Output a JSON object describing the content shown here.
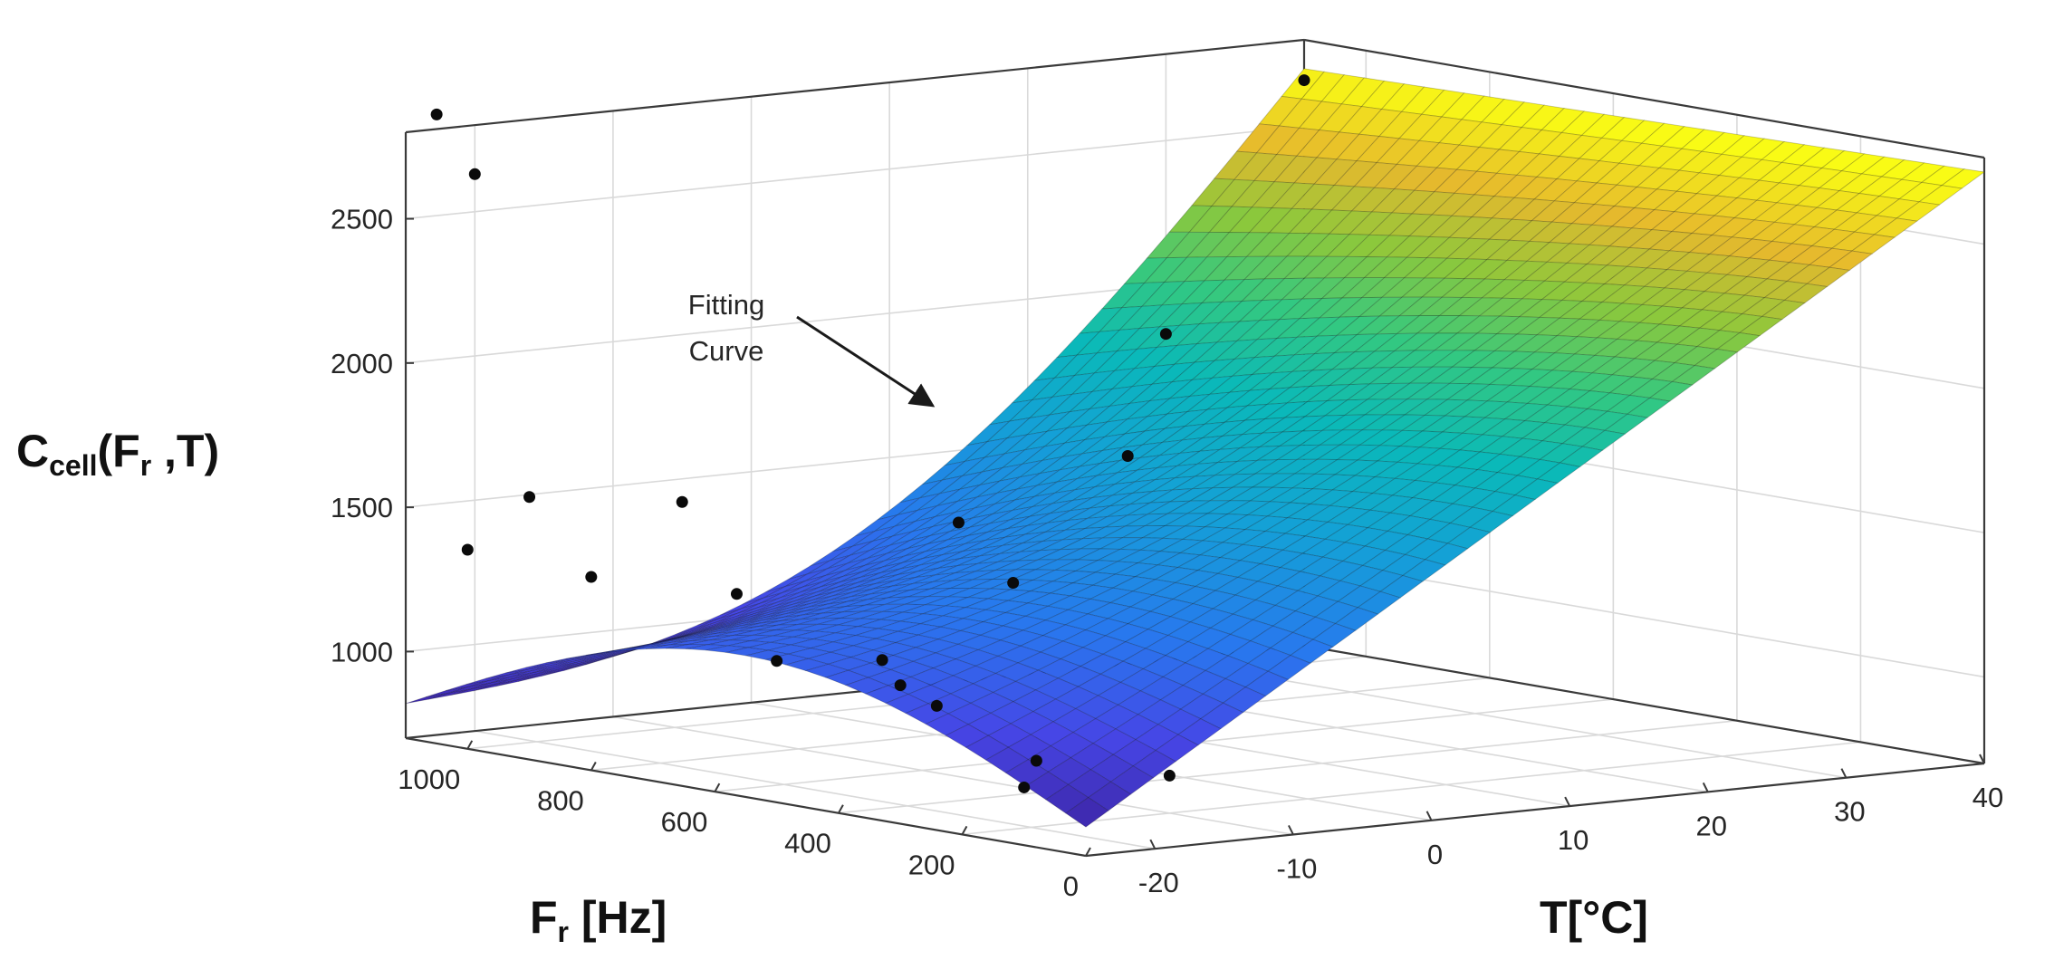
{
  "chart_data": {
    "type": "surface3d",
    "title": "",
    "zlabel": {
      "main": "C",
      "sub": "cell",
      "rest_a": "(F",
      "sub2": "r",
      "rest_b": " ,T)"
    },
    "xlabel": {
      "main": "F",
      "sub": "r",
      "rest": " [Hz]"
    },
    "ylabel": "T[°C]",
    "x_range": [
      0,
      1100
    ],
    "y_range": [
      -25,
      40
    ],
    "z_range": [
      700,
      2800
    ],
    "x_ticks": [
      0,
      200,
      400,
      600,
      800,
      1000
    ],
    "y_ticks": [
      -20,
      -10,
      0,
      10,
      20,
      30,
      40
    ],
    "z_ticks": [
      1000,
      1500,
      2000,
      2500
    ],
    "grid": true,
    "colormap": "parula",
    "color_range": [
      800,
      2700
    ],
    "surface_model": {
      "description": "fitted surface C_cell(F_r, T)",
      "corners": [
        {
          "x": 0,
          "y": -25,
          "z": 800
        },
        {
          "x": 0,
          "y": 40,
          "z": 2750
        },
        {
          "x": 1100,
          "y": -25,
          "z": 820
        },
        {
          "x": 1100,
          "y": 40,
          "z": 2700
        }
      ]
    },
    "measured_points": [
      {
        "x": 100,
        "y": -25,
        "z": 900
      },
      {
        "x": 80,
        "y": -25,
        "z": 1000
      },
      {
        "x": 300,
        "y": -25,
        "z": 1180
      },
      {
        "x": 500,
        "y": -25,
        "z": 1190
      },
      {
        "x": 800,
        "y": -25,
        "z": 1370
      },
      {
        "x": 1000,
        "y": -25,
        "z": 1390
      },
      {
        "x": 900,
        "y": -25,
        "z": 1610
      },
      {
        "x": 1050,
        "y": -25,
        "z": 2880
      },
      {
        "x": 1100,
        "y": -20,
        "z": 2630
      },
      {
        "x": 200,
        "y": -10,
        "z": 830
      },
      {
        "x": 900,
        "y": -10,
        "z": 1200
      },
      {
        "x": 1100,
        "y": -5,
        "z": 1420
      },
      {
        "x": 800,
        "y": 0,
        "z": 800
      },
      {
        "x": 1000,
        "y": 5,
        "z": 860
      },
      {
        "x": 900,
        "y": 10,
        "z": 1140
      },
      {
        "x": 1100,
        "y": 15,
        "z": 1250
      },
      {
        "x": 1050,
        "y": 25,
        "z": 1450
      },
      {
        "x": 1100,
        "y": 30,
        "z": 1830
      },
      {
        "x": 1100,
        "y": 40,
        "z": 2660
      }
    ],
    "annotations": [
      {
        "text_lines": [
          "Fitting",
          "Curve"
        ],
        "points_to": "surface"
      }
    ]
  }
}
